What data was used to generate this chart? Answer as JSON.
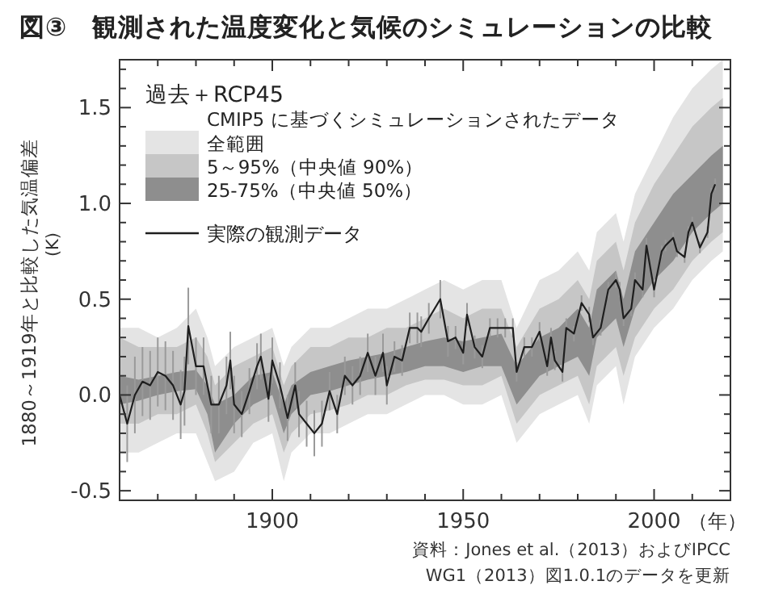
{
  "chart_data": {
    "type": "line",
    "title": "図③　観測された温度変化と気候のシミュレーションの比較",
    "xlabel": "（年）",
    "ylabel": "1880～1919年と比較した気温偏差 (K)",
    "legend_title": "過去＋RCP45",
    "legend": "top left",
    "annotations": [
      "CMIP5 に基づくシミュレーションされたデータ",
      "資料：Jones et al.（2013）およびIPCC",
      "WG1（2013）図1.0.1のデータを更新"
    ],
    "xlim": [
      1860,
      2020
    ],
    "ylim": [
      -0.55,
      1.75
    ],
    "xticks": [
      {
        "value": 1870,
        "label": null
      },
      {
        "value": 1880,
        "label": null
      },
      {
        "value": 1890,
        "label": null
      },
      1900,
      {
        "value": 1910,
        "label": null
      },
      {
        "value": 1920,
        "label": null
      },
      {
        "value": 1930,
        "label": null
      },
      {
        "value": 1940,
        "label": null
      },
      1950,
      {
        "value": 1960,
        "label": null
      },
      {
        "value": 1970,
        "label": null
      },
      {
        "value": 1980,
        "label": null
      },
      {
        "value": 1990,
        "label": null
      },
      2000,
      {
        "value": 2010,
        "label": null
      }
    ],
    "yticks": [
      {
        "value": -0.5,
        "label": "-0.5"
      },
      {
        "value": -0.4,
        "label": null
      },
      {
        "value": -0.3,
        "label": null
      },
      {
        "value": -0.2,
        "label": null
      },
      {
        "value": -0.1,
        "label": null
      },
      {
        "value": 0,
        "label": "0.0"
      },
      {
        "value": 0.1,
        "label": null
      },
      {
        "value": 0.2,
        "label": null
      },
      {
        "value": 0.3,
        "label": null
      },
      {
        "value": 0.4,
        "label": null
      },
      0.5,
      {
        "value": 0.6,
        "label": null
      },
      {
        "value": 0.7,
        "label": null
      },
      {
        "value": 0.8,
        "label": null
      },
      {
        "value": 0.9,
        "label": null
      },
      {
        "value": 1,
        "label": "1.0"
      },
      {
        "value": 1.1,
        "label": null
      },
      {
        "value": 1.2,
        "label": null
      },
      {
        "value": 1.3,
        "label": null
      },
      {
        "value": 1.4,
        "label": null
      },
      1.5,
      {
        "value": 1.6,
        "label": null
      },
      {
        "value": 1.7,
        "label": null
      }
    ],
    "series": [
      {
        "name": "全範囲",
        "type": "area",
        "color": "#e4e4e4",
        "x": [
          1860,
          1865,
          1870,
          1875,
          1880,
          1883,
          1885,
          1890,
          1895,
          1900,
          1903,
          1905,
          1910,
          1915,
          1920,
          1925,
          1930,
          1935,
          1940,
          1945,
          1950,
          1955,
          1960,
          1964,
          1970,
          1975,
          1980,
          1983,
          1985,
          1990,
          1992,
          1995,
          2000,
          2005,
          2010,
          2015,
          2018
        ],
        "values": [
          null,
          null,
          null,
          null,
          null,
          null,
          null,
          null,
          null,
          null,
          null,
          null,
          null,
          null,
          null,
          null,
          null,
          null,
          null,
          null,
          null,
          null,
          null,
          null,
          null,
          null,
          null,
          null,
          null,
          null,
          null,
          null,
          null,
          null,
          null,
          null,
          null
        ],
        "lower": [
          -0.3,
          -0.3,
          -0.25,
          -0.2,
          -0.2,
          -0.35,
          -0.45,
          -0.4,
          -0.25,
          -0.2,
          -0.45,
          -0.3,
          -0.2,
          -0.2,
          -0.15,
          -0.1,
          -0.1,
          -0.05,
          0.0,
          0.0,
          -0.05,
          -0.05,
          0.0,
          -0.25,
          -0.1,
          -0.05,
          0.0,
          -0.15,
          0.05,
          0.15,
          -0.05,
          0.2,
          0.35,
          0.45,
          0.6,
          0.7,
          0.75
        ],
        "upper": [
          0.35,
          0.35,
          0.3,
          0.35,
          0.45,
          0.3,
          0.15,
          0.25,
          0.3,
          0.35,
          0.15,
          0.25,
          0.35,
          0.35,
          0.4,
          0.45,
          0.45,
          0.5,
          0.55,
          0.6,
          0.55,
          0.6,
          0.6,
          0.35,
          0.6,
          0.65,
          0.75,
          0.65,
          0.85,
          0.95,
          0.8,
          1.05,
          1.25,
          1.45,
          1.6,
          1.7,
          1.75
        ]
      },
      {
        "name": "5～95%（中央値 90%）",
        "type": "area",
        "color": "#c6c6c6",
        "x": [
          1860,
          1865,
          1870,
          1875,
          1880,
          1883,
          1885,
          1890,
          1895,
          1900,
          1903,
          1905,
          1910,
          1915,
          1920,
          1925,
          1930,
          1935,
          1940,
          1945,
          1950,
          1955,
          1960,
          1964,
          1970,
          1975,
          1980,
          1983,
          1985,
          1990,
          1992,
          1995,
          2000,
          2005,
          2010,
          2015,
          2018
        ],
        "values": [
          null,
          null,
          null,
          null,
          null,
          null,
          null,
          null,
          null,
          null,
          null,
          null,
          null,
          null,
          null,
          null,
          null,
          null,
          null,
          null,
          null,
          null,
          null,
          null,
          null,
          null,
          null,
          null,
          null,
          null,
          null,
          null,
          null,
          null,
          null,
          null,
          null
        ],
        "lower": [
          -0.15,
          -0.15,
          -0.1,
          -0.1,
          -0.05,
          -0.2,
          -0.35,
          -0.25,
          -0.15,
          -0.1,
          -0.3,
          -0.2,
          -0.1,
          -0.08,
          -0.05,
          0.0,
          0.0,
          0.05,
          0.08,
          0.08,
          0.05,
          0.05,
          0.1,
          -0.15,
          0.0,
          0.05,
          0.1,
          -0.05,
          0.15,
          0.25,
          0.1,
          0.3,
          0.45,
          0.55,
          0.7,
          0.8,
          0.85
        ],
        "upper": [
          0.3,
          0.25,
          0.25,
          0.25,
          0.3,
          0.2,
          0.05,
          0.15,
          0.2,
          0.25,
          0.05,
          0.15,
          0.25,
          0.25,
          0.3,
          0.3,
          0.35,
          0.35,
          0.4,
          0.45,
          0.4,
          0.45,
          0.45,
          0.25,
          0.45,
          0.5,
          0.6,
          0.5,
          0.7,
          0.8,
          0.65,
          0.9,
          1.1,
          1.25,
          1.4,
          1.5,
          1.55
        ]
      },
      {
        "name": "25-75%（中央値 50%）",
        "type": "area",
        "color": "#8e8e8e",
        "x": [
          1860,
          1865,
          1870,
          1875,
          1880,
          1883,
          1885,
          1890,
          1895,
          1900,
          1903,
          1905,
          1910,
          1915,
          1920,
          1925,
          1930,
          1935,
          1940,
          1945,
          1950,
          1955,
          1960,
          1964,
          1970,
          1975,
          1980,
          1983,
          1985,
          1990,
          1992,
          1995,
          2000,
          2005,
          2010,
          2015,
          2018
        ],
        "values": [
          null,
          null,
          null,
          null,
          null,
          null,
          null,
          null,
          null,
          null,
          null,
          null,
          null,
          null,
          null,
          null,
          null,
          null,
          null,
          null,
          null,
          null,
          null,
          null,
          null,
          null,
          null,
          null,
          null,
          null,
          null,
          null,
          null,
          null,
          null,
          null,
          null
        ],
        "lower": [
          -0.05,
          -0.03,
          0.0,
          0.02,
          0.03,
          -0.1,
          -0.3,
          -0.15,
          -0.05,
          0.0,
          -0.2,
          -0.1,
          0.0,
          0.02,
          0.05,
          0.08,
          0.1,
          0.12,
          0.15,
          0.15,
          0.12,
          0.15,
          0.15,
          -0.05,
          0.1,
          0.15,
          0.2,
          0.1,
          0.3,
          0.4,
          0.25,
          0.45,
          0.6,
          0.7,
          0.85,
          0.95,
          1.0
        ],
        "upper": [
          0.1,
          0.08,
          0.1,
          0.12,
          0.13,
          0.05,
          -0.05,
          0.0,
          0.1,
          0.12,
          -0.05,
          0.05,
          0.12,
          0.15,
          0.18,
          0.2,
          0.22,
          0.25,
          0.28,
          0.3,
          0.28,
          0.3,
          0.32,
          0.15,
          0.3,
          0.35,
          0.45,
          0.35,
          0.55,
          0.65,
          0.5,
          0.75,
          0.9,
          1.05,
          1.15,
          1.25,
          1.3
        ]
      },
      {
        "name": "実際の観測データ",
        "type": "line",
        "color": "#1e1e1e",
        "x": [
          1860,
          1862,
          1864,
          1866,
          1868,
          1870,
          1872,
          1874,
          1876,
          1877,
          1878,
          1880,
          1882,
          1884,
          1886,
          1888,
          1889,
          1890,
          1892,
          1894,
          1896,
          1897,
          1899,
          1900,
          1902,
          1904,
          1906,
          1907,
          1909,
          1911,
          1913,
          1915,
          1917,
          1919,
          1921,
          1923,
          1925,
          1927,
          1929,
          1930,
          1932,
          1934,
          1936,
          1938,
          1939,
          1941,
          1944,
          1946,
          1948,
          1950,
          1951,
          1953,
          1955,
          1957,
          1959,
          1961,
          1963,
          1964,
          1966,
          1968,
          1970,
          1972,
          1973,
          1974,
          1976,
          1977,
          1979,
          1981,
          1983,
          1984,
          1986,
          1988,
          1990,
          1991,
          1992,
          1994,
          1995,
          1997,
          1998,
          2000,
          2002,
          2003,
          2005,
          2006,
          2008,
          2009,
          2010,
          2012,
          2014,
          2015,
          2016
        ],
        "values": [
          0.0,
          -0.15,
          0.0,
          0.07,
          0.05,
          0.12,
          0.1,
          0.05,
          -0.05,
          0.02,
          0.36,
          0.15,
          0.15,
          -0.05,
          -0.05,
          0.05,
          0.18,
          -0.05,
          -0.1,
          0.02,
          0.15,
          0.2,
          -0.02,
          0.18,
          0.05,
          -0.12,
          0.05,
          -0.1,
          -0.15,
          -0.2,
          -0.15,
          0.02,
          -0.1,
          0.1,
          0.05,
          0.1,
          0.22,
          0.1,
          0.22,
          0.05,
          0.2,
          0.18,
          0.35,
          0.35,
          0.33,
          0.4,
          0.5,
          0.28,
          0.3,
          0.22,
          0.42,
          0.25,
          0.2,
          0.35,
          0.35,
          0.35,
          0.35,
          0.12,
          0.25,
          0.25,
          0.33,
          0.15,
          0.3,
          0.18,
          0.12,
          0.35,
          0.32,
          0.48,
          0.42,
          0.3,
          0.35,
          0.55,
          0.6,
          0.55,
          0.4,
          0.45,
          0.6,
          0.55,
          0.78,
          0.55,
          0.75,
          0.78,
          0.82,
          0.75,
          0.72,
          0.85,
          0.9,
          0.77,
          0.85,
          1.05,
          1.1
        ],
        "errors": [
          0.2,
          0.2,
          0.2,
          0.18,
          0.18,
          0.18,
          0.18,
          0.18,
          0.18,
          0.18,
          0.2,
          0.15,
          0.15,
          0.15,
          0.15,
          0.15,
          0.15,
          0.15,
          0.12,
          0.12,
          0.12,
          0.12,
          0.12,
          0.12,
          0.12,
          0.12,
          0.12,
          0.12,
          0.12,
          0.12,
          0.12,
          0.1,
          0.1,
          0.1,
          0.1,
          0.1,
          0.1,
          0.1,
          0.1,
          0.1,
          0.08,
          0.08,
          0.08,
          0.08,
          0.08,
          0.08,
          0.1,
          0.08,
          0.06,
          0.06,
          0.06,
          0.06,
          0.06,
          0.05,
          0.05,
          0.05,
          0.05,
          0.05,
          0.05,
          0.05,
          0.05,
          0.05,
          0.05,
          0.05,
          0.05,
          0.05,
          0.04,
          0.04,
          0.04,
          0.04,
          0.04,
          0.04,
          0.04,
          0.04,
          0.04,
          0.04,
          0.04,
          0.04,
          0.04,
          0.04,
          0.03,
          0.03,
          0.03,
          0.03,
          0.03,
          0.03,
          0.03,
          0.03,
          0.03,
          0.03,
          0.03
        ]
      }
    ]
  }
}
